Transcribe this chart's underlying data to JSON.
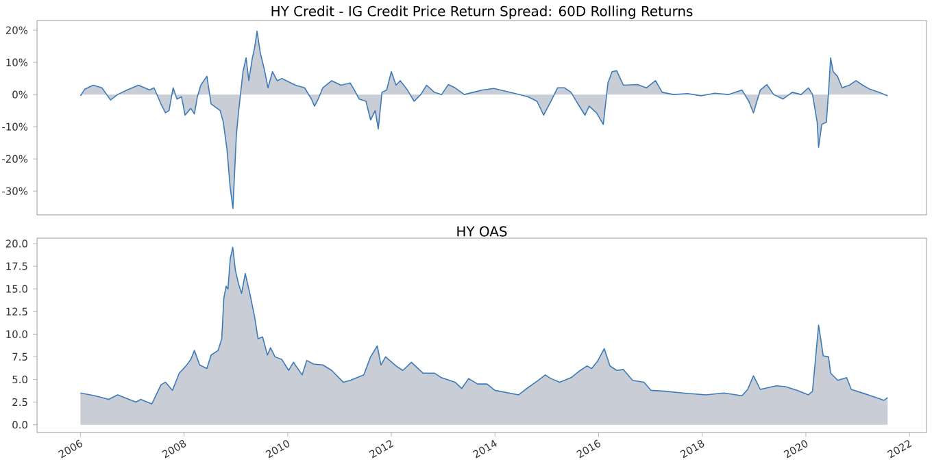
{
  "chart_data": [
    {
      "type": "area",
      "title": "HY Credit - IG Credit Price Return Spread: 60D Rolling Returns",
      "xlim": [
        "2005-03",
        "2022-05"
      ],
      "ylim": [
        -37.4,
        23
      ],
      "yticks": [
        {
          "value": -30,
          "label": "-30%"
        },
        {
          "value": -20,
          "label": "-20%"
        },
        {
          "value": -10,
          "label": "-10%"
        },
        {
          "value": 0,
          "label": "0%"
        },
        {
          "value": 10,
          "label": "10%"
        },
        {
          "value": 20,
          "label": "20%"
        }
      ],
      "tick_labels": "y",
      "x": [
        "2006-01-01",
        "2006-02-01",
        "2006-04-01",
        "2006-06-01",
        "2006-08-01",
        "2006-09-20",
        "2006-11-25",
        "2007-02-14",
        "2007-05-04",
        "2007-06-03",
        "2007-07-22",
        "2007-08-23",
        "2007-09-17",
        "2007-10-16",
        "2007-11-12",
        "2007-12-14",
        "2008-01-08",
        "2008-02-17",
        "2008-03-14",
        "2008-04-04",
        "2008-04-28",
        "2008-06-10",
        "2008-07-10",
        "2008-09-12",
        "2008-10-04",
        "2008-10-30",
        "2008-11-21",
        "2008-12-11",
        "2009-01-04",
        "2009-01-19",
        "2009-02-20",
        "2009-03-14",
        "2009-04-02",
        "2009-04-27",
        "2009-05-12",
        "2009-05-30",
        "2009-06-22",
        "2009-07-20",
        "2009-08-15",
        "2009-09-16",
        "2009-10-19",
        "2009-11-21",
        "2009-12-23",
        "2010-02-25",
        "2010-04-30",
        "2010-06-17",
        "2010-07-09",
        "2010-08-04",
        "2010-09-05",
        "2010-11-07",
        "2011-01-11",
        "2011-03-17",
        "2011-04-16",
        "2011-05-19",
        "2011-07-06",
        "2011-08-08",
        "2011-09-09",
        "2011-10-01",
        "2011-10-27",
        "2011-11-29",
        "2012-01-01",
        "2012-02-03",
        "2012-03-04",
        "2012-04-24",
        "2012-06-10",
        "2012-07-27",
        "2012-09-06",
        "2012-10-31",
        "2012-12-21",
        "2013-02-06",
        "2013-03-26",
        "2013-05-30",
        "2013-07-31",
        "2013-10-05",
        "2013-12-24",
        "2014-05-16",
        "2014-08-23",
        "2014-10-24",
        "2014-12-10",
        "2015-01-30",
        "2015-03-18",
        "2015-05-05",
        "2015-06-21",
        "2015-08-08",
        "2015-09-27",
        "2015-10-27",
        "2015-12-17",
        "2016-02-03",
        "2016-03-07",
        "2016-04-05",
        "2016-05-08",
        "2016-06-24",
        "2016-10-01",
        "2016-12-03",
        "2017-02-06",
        "2017-03-25",
        "2017-06-13",
        "2017-09-20",
        "2017-12-24",
        "2018-03-29",
        "2018-07-04",
        "2018-10-08",
        "2018-11-25",
        "2018-12-28",
        "2019-02-14",
        "2019-04-01",
        "2019-05-19",
        "2019-07-24",
        "2019-09-27",
        "2019-11-29",
        "2020-01-19",
        "2020-02-17",
        "2020-03-21",
        "2020-03-31",
        "2020-04-22",
        "2020-05-25",
        "2020-06-09",
        "2020-06-24",
        "2020-07-12",
        "2020-08-11",
        "2020-09-13",
        "2020-11-03",
        "2020-12-20",
        "2021-02-06",
        "2021-03-26",
        "2021-05-30",
        "2021-07-31"
      ],
      "series": [
        {
          "color": "#3d7ab8",
          "values": [
            -0.4,
            1.7,
            2.9,
            2.1,
            -1.7,
            0,
            1.4,
            2.9,
            1.4,
            2.1,
            -2.9,
            -5.7,
            -5.0,
            2.1,
            -1.4,
            -0.7,
            -6.4,
            -4.3,
            -6.0,
            -0.7,
            2.9,
            5.7,
            -2.9,
            -5.0,
            -8.6,
            -17,
            -28.6,
            -35.4,
            -12.9,
            -5.7,
            7.1,
            11.4,
            4.3,
            11.4,
            14.3,
            19.7,
            12.9,
            7.9,
            2.1,
            7.1,
            4.3,
            5.0,
            4.3,
            2.9,
            2.1,
            -1.4,
            -3.6,
            -1.4,
            2.1,
            4.3,
            2.9,
            3.6,
            1.4,
            -1.4,
            -2.1,
            -7.9,
            -5.0,
            -10.7,
            0.7,
            1.4,
            7.1,
            2.9,
            4.3,
            1.4,
            -2.1,
            0,
            2.9,
            0.7,
            0,
            3.1,
            2.1,
            0,
            0.7,
            1.4,
            1.9,
            0.4,
            -0.7,
            -2.1,
            -6.4,
            -2.1,
            2.1,
            2.1,
            0.7,
            -2.9,
            -6.4,
            -3.6,
            -5.7,
            -9.3,
            3.6,
            7.1,
            7.4,
            2.9,
            3.1,
            2.1,
            4.3,
            0.7,
            0,
            0.3,
            -0.4,
            0.4,
            0,
            1.4,
            -2.1,
            -5.7,
            1.4,
            3.1,
            0,
            -1.4,
            0.7,
            0,
            2.1,
            0,
            -8.6,
            -16.4,
            -9.3,
            -8.6,
            0.7,
            11.4,
            7.1,
            5.7,
            2.1,
            2.9,
            4.3,
            2.9,
            1.7,
            0.7,
            -0.4
          ]
        }
      ]
    },
    {
      "type": "area",
      "title": "HY OAS",
      "xlim": [
        "2005-03",
        "2022-05"
      ],
      "ylim": [
        -0.86,
        20.6
      ],
      "yticks": [
        {
          "value": 0,
          "label": "0.0"
        },
        {
          "value": 2.5,
          "label": "2.5"
        },
        {
          "value": 5,
          "label": "5.0"
        },
        {
          "value": 7.5,
          "label": "7.5"
        },
        {
          "value": 10,
          "label": "10.0"
        },
        {
          "value": 12.5,
          "label": "12.5"
        },
        {
          "value": 15,
          "label": "15.0"
        },
        {
          "value": 17.5,
          "label": "17.5"
        },
        {
          "value": 20,
          "label": "20.0"
        }
      ],
      "xticks": [
        "2006",
        "2008",
        "2010",
        "2012",
        "2014",
        "2016",
        "2018",
        "2020",
        "2022"
      ],
      "x": [
        "2006-01-01",
        "2006-04-12",
        "2006-07-19",
        "2006-09-20",
        "2007-01-27",
        "2007-03-01",
        "2007-05-19",
        "2007-07-22",
        "2007-08-23",
        "2007-10-11",
        "2007-11-28",
        "2008-01-15",
        "2008-02-17",
        "2008-03-14",
        "2008-04-20",
        "2008-06-10",
        "2008-07-10",
        "2008-08-28",
        "2008-09-23",
        "2008-10-08",
        "2008-10-24",
        "2008-11-06",
        "2008-11-22",
        "2008-12-10",
        "2008-12-28",
        "2009-01-19",
        "2009-02-10",
        "2009-03-08",
        "2009-04-09",
        "2009-05-12",
        "2009-06-06",
        "2009-07-08",
        "2009-08-11",
        "2009-09-02",
        "2009-10-04",
        "2009-11-21",
        "2010-01-08",
        "2010-02-10",
        "2010-04-13",
        "2010-05-15",
        "2010-07-02",
        "2010-09-06",
        "2010-11-07",
        "2011-01-27",
        "2011-03-18",
        "2011-06-21",
        "2011-08-08",
        "2011-09-24",
        "2011-10-20",
        "2011-11-21",
        "2012-02-03",
        "2012-03-22",
        "2012-05-22",
        "2012-08-11",
        "2012-10-31",
        "2012-12-20",
        "2013-03-26",
        "2013-05-12",
        "2013-06-29",
        "2013-09-01",
        "2013-11-06",
        "2014-01-01",
        "2014-06-17",
        "2014-08-04",
        "2014-10-24",
        "2014-12-21",
        "2015-01-30",
        "2015-04-02",
        "2015-06-21",
        "2015-08-25",
        "2015-10-12",
        "2015-11-13",
        "2015-12-24",
        "2016-02-10",
        "2016-03-21",
        "2016-05-08",
        "2016-06-24",
        "2016-08-28",
        "2016-11-17",
        "2017-01-04",
        "2017-04-12",
        "2017-08-18",
        "2018-01-26",
        "2018-06-03",
        "2018-10-08",
        "2018-11-17",
        "2018-12-28",
        "2019-02-14",
        "2019-06-06",
        "2019-08-11",
        "2019-10-30",
        "2020-01-19",
        "2020-02-17",
        "2020-03-31",
        "2020-05-03",
        "2020-06-09",
        "2020-06-24",
        "2020-08-14",
        "2020-10-15",
        "2020-11-17",
        "2021-02-24",
        "2021-05-30",
        "2021-07-05",
        "2021-07-31"
      ],
      "series": [
        {
          "color": "#3d7ab8",
          "values": [
            3.5,
            3.2,
            2.8,
            3.3,
            2.5,
            2.8,
            2.3,
            4.4,
            4.7,
            3.8,
            5.7,
            6.5,
            7.2,
            8.2,
            6.6,
            6.2,
            7.7,
            8.2,
            9.5,
            14.0,
            15.3,
            15.0,
            18.3,
            19.6,
            17.1,
            15.6,
            14.5,
            16.7,
            14.5,
            12.0,
            9.5,
            9.7,
            7.7,
            8.5,
            7.5,
            7.2,
            6.0,
            6.9,
            5.5,
            7.1,
            6.7,
            6.6,
            6.0,
            4.7,
            4.9,
            5.5,
            7.5,
            8.7,
            6.6,
            7.5,
            6.5,
            6.0,
            6.9,
            5.7,
            5.7,
            5.2,
            4.7,
            4.0,
            5.1,
            4.5,
            4.5,
            3.8,
            3.3,
            3.9,
            4.8,
            5.5,
            5.1,
            4.7,
            5.2,
            6.0,
            6.5,
            6.2,
            7.0,
            8.4,
            6.5,
            6.0,
            6.1,
            4.9,
            4.7,
            3.8,
            3.7,
            3.5,
            3.3,
            3.5,
            3.2,
            3.9,
            5.4,
            3.9,
            4.3,
            4.2,
            3.8,
            3.3,
            3.7,
            11.0,
            7.6,
            7.5,
            5.7,
            4.9,
            5.2,
            3.9,
            3.4,
            2.9,
            2.7,
            3.0
          ]
        }
      ]
    }
  ]
}
